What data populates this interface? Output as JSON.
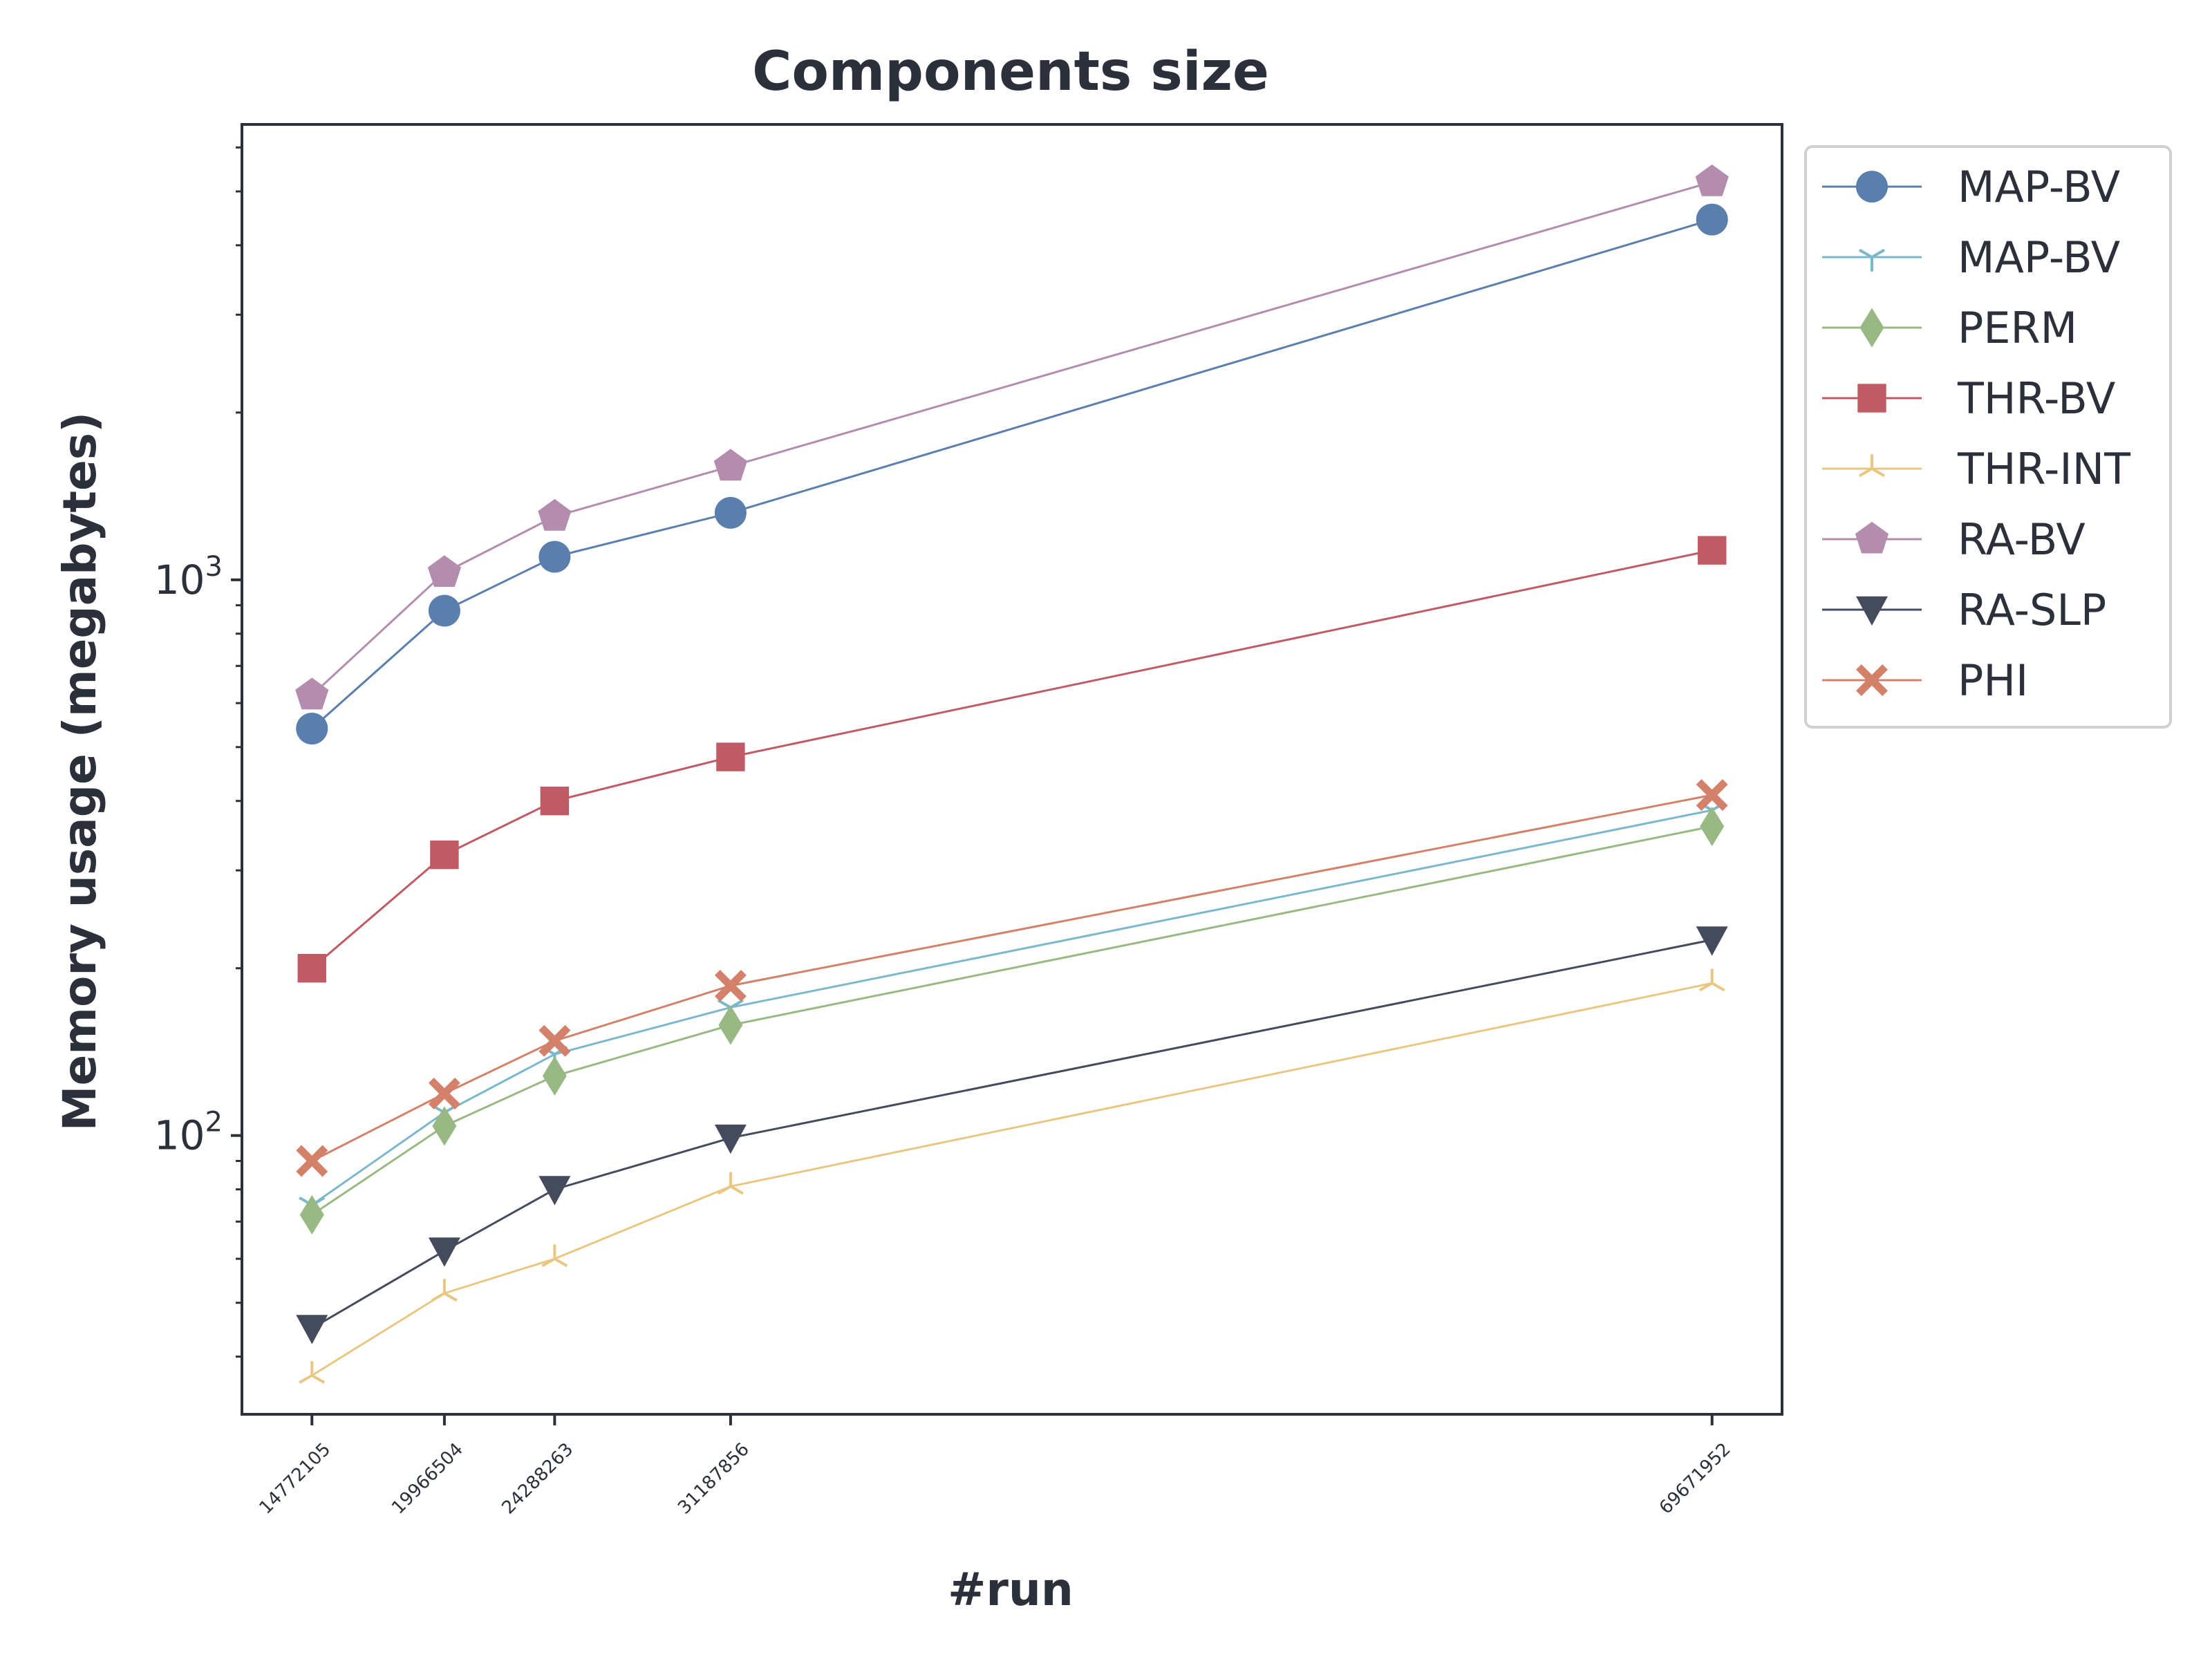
{
  "chart_data": {
    "type": "line",
    "title": "Components size",
    "xlabel": "#run",
    "ylabel": "Memory usage (megabytes)",
    "yscale": "log",
    "ylim": [
      31.5,
      6600
    ],
    "grid": false,
    "legend_position": "outside-top-right",
    "x": [
      14772105,
      19966504,
      24288263,
      31187856,
      69671952
    ],
    "x_tick_labels": [
      "14772105",
      "19966504",
      "24288263",
      "31187856",
      "69671952"
    ],
    "y_ticks": [
      {
        "value": 100,
        "base": "10",
        "exp": "2"
      },
      {
        "value": 1000,
        "base": "10",
        "exp": "3"
      }
    ],
    "series": [
      {
        "name": "MAP-BV",
        "color": "#5a7fad",
        "marker": "circle",
        "values": [
          540,
          880,
          1100,
          1320,
          4450
        ]
      },
      {
        "name": "MAP-BV",
        "color": "#7bb8cc",
        "marker": "tri_down",
        "values": [
          75,
          110,
          140,
          170,
          385
        ]
      },
      {
        "name": "PERM",
        "color": "#98b983",
        "marker": "diamond",
        "values": [
          72,
          104,
          128,
          158,
          360
        ]
      },
      {
        "name": "THR-BV",
        "color": "#c05b66",
        "marker": "square",
        "values": [
          200,
          320,
          400,
          480,
          1130
        ]
      },
      {
        "name": "THR-INT",
        "color": "#e9c783",
        "marker": "tri_up",
        "values": [
          37,
          52,
          60,
          81,
          188
        ]
      },
      {
        "name": "RA-BV",
        "color": "#b48cad",
        "marker": "pentagon",
        "values": [
          620,
          1030,
          1300,
          1600,
          5200
        ]
      },
      {
        "name": "RA-SLP",
        "color": "#434b5d",
        "marker": "triangle_down",
        "values": [
          45,
          62,
          80,
          99,
          225
        ]
      },
      {
        "name": "PHI",
        "color": "#d3816a",
        "marker": "x_filled",
        "values": [
          90,
          119,
          148,
          186,
          410
        ]
      }
    ]
  }
}
